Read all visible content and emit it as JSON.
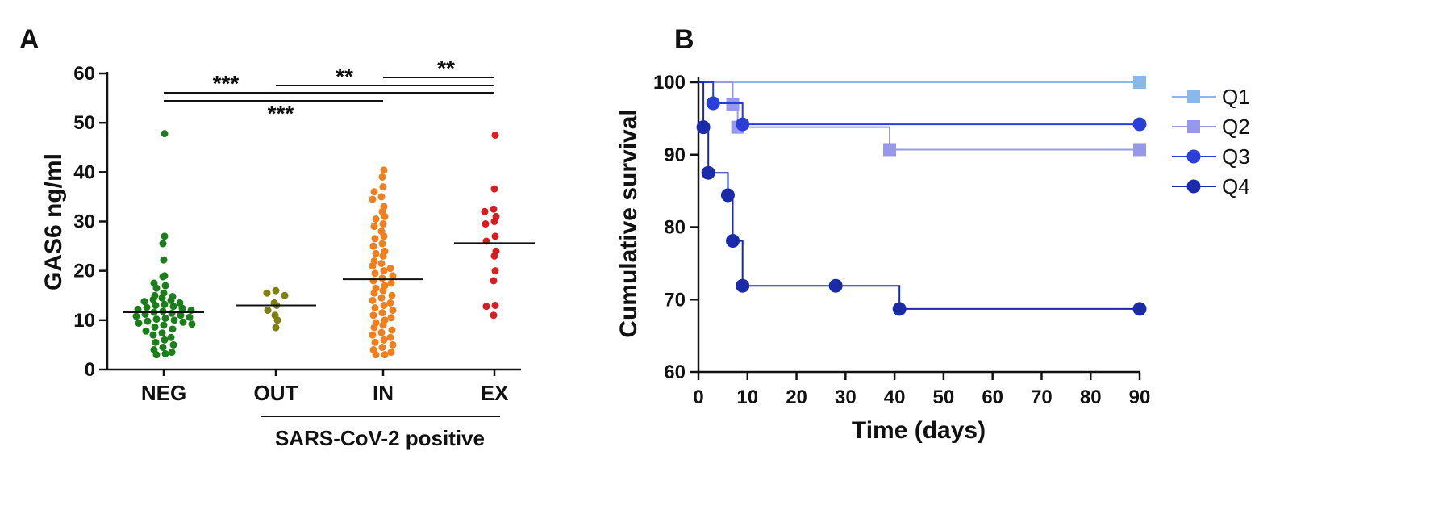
{
  "chart_data": [
    {
      "panel": "A",
      "type": "scatter",
      "ylabel": "GAS6 ng/ml",
      "ylim": [
        0,
        60
      ],
      "yticks": [
        0,
        10,
        20,
        30,
        40,
        50,
        60
      ],
      "categories": [
        "NEG",
        "OUT",
        "IN",
        "EX"
      ],
      "group_label": "SARS-CoV-2 positive",
      "colors": {
        "NEG": "#1a7f1a",
        "OUT": "#7f7f14",
        "IN": "#f07f1e",
        "EX": "#d81e1e"
      },
      "medians": [
        11.6,
        13,
        18.3,
        25.6
      ],
      "points": {
        "NEG": [
          47.8,
          27,
          25.5,
          22.2,
          19,
          18.8,
          17.5,
          17,
          16.5,
          15.5,
          15,
          14.8,
          14.5,
          14.2,
          14,
          13.8,
          13.5,
          13.2,
          13,
          12.8,
          12.6,
          12.4,
          12.2,
          12,
          11.8,
          11.6,
          11.4,
          11.2,
          11,
          10.8,
          10.6,
          10.4,
          10.2,
          10,
          9.8,
          9.6,
          9.4,
          9.2,
          9,
          8.6,
          8.2,
          7.8,
          7.4,
          7,
          6.5,
          6,
          5.5,
          5,
          4.5,
          4,
          3.5,
          3.2,
          3
        ],
        "OUT": [
          16,
          15.5,
          15,
          13.5,
          13,
          12,
          11,
          10,
          8.5
        ],
        "IN": [
          40.4,
          39,
          37,
          36,
          35,
          34.5,
          33,
          32,
          31,
          30.5,
          29.5,
          29,
          28,
          27,
          26.5,
          25.5,
          25,
          24,
          23.5,
          23,
          22,
          21.5,
          21,
          20.5,
          20,
          19.5,
          19,
          18.5,
          18,
          17.5,
          17,
          16.5,
          16,
          15.5,
          15,
          14.5,
          14,
          13.5,
          13,
          12.5,
          12,
          11.5,
          11,
          10.5,
          10,
          9.5,
          9,
          8.5,
          8,
          7.5,
          7,
          6.5,
          6,
          5.5,
          5,
          4.5,
          4,
          3.5,
          3,
          3
        ],
        "EX": [
          47.5,
          36.6,
          32.5,
          32,
          31,
          30,
          29.5,
          27,
          26,
          24,
          23,
          20,
          18,
          13,
          12.8,
          11
        ]
      },
      "significance": [
        {
          "from": "NEG",
          "to": "EX",
          "label": "***"
        },
        {
          "from": "OUT",
          "to": "EX",
          "label": "**"
        },
        {
          "from": "IN",
          "to": "EX",
          "label": "**"
        },
        {
          "from": "NEG",
          "to": "IN",
          "label": "***"
        }
      ]
    },
    {
      "panel": "B",
      "type": "line",
      "subtype": "kaplan-meier",
      "xlabel": "Time (days)",
      "ylabel": "Cumulative survival",
      "xlim": [
        0,
        90
      ],
      "ylim": [
        60,
        100
      ],
      "xticks": [
        0,
        10,
        20,
        30,
        40,
        50,
        60,
        70,
        80,
        90
      ],
      "yticks": [
        60,
        70,
        80,
        90,
        100
      ],
      "legend_position": "right",
      "series": [
        {
          "name": "Q1",
          "color": "#8ab8ea",
          "marker": "square",
          "steps": [
            [
              0,
              100
            ],
            [
              90,
              100
            ]
          ],
          "markers": [
            [
              90,
              100
            ]
          ]
        },
        {
          "name": "Q2",
          "color": "#9898ea",
          "marker": "square",
          "steps": [
            [
              0,
              100
            ],
            [
              7,
              100
            ],
            [
              7,
              96.9
            ],
            [
              8,
              96.9
            ],
            [
              8,
              93.8
            ],
            [
              39,
              93.8
            ],
            [
              39,
              90.7
            ],
            [
              90,
              90.7
            ]
          ],
          "markers": [
            [
              7,
              96.9
            ],
            [
              8,
              93.8
            ],
            [
              39,
              90.7
            ],
            [
              90,
              90.7
            ]
          ]
        },
        {
          "name": "Q3",
          "color": "#2a3fd8",
          "marker": "circle",
          "steps": [
            [
              0,
              100
            ],
            [
              3,
              100
            ],
            [
              3,
              97.1
            ],
            [
              9,
              97.1
            ],
            [
              9,
              94.2
            ],
            [
              90,
              94.2
            ]
          ],
          "markers": [
            [
              3,
              97.1
            ],
            [
              9,
              94.2
            ],
            [
              90,
              94.2
            ]
          ]
        },
        {
          "name": "Q4",
          "color": "#1a2aa8",
          "marker": "circle",
          "steps": [
            [
              0,
              100
            ],
            [
              1,
              100
            ],
            [
              1,
              93.8
            ],
            [
              2,
              93.8
            ],
            [
              2,
              87.5
            ],
            [
              6,
              87.5
            ],
            [
              6,
              84.4
            ],
            [
              7,
              84.4
            ],
            [
              7,
              78.1
            ],
            [
              9,
              78.1
            ],
            [
              9,
              71.9
            ],
            [
              41,
              71.9
            ],
            [
              41,
              68.7
            ],
            [
              90,
              68.7
            ]
          ],
          "markers": [
            [
              1,
              93.8
            ],
            [
              2,
              87.5
            ],
            [
              6,
              84.4
            ],
            [
              7,
              78.1
            ],
            [
              9,
              71.9
            ],
            [
              28,
              71.9
            ],
            [
              41,
              68.7
            ],
            [
              90,
              68.7
            ]
          ]
        }
      ]
    }
  ]
}
